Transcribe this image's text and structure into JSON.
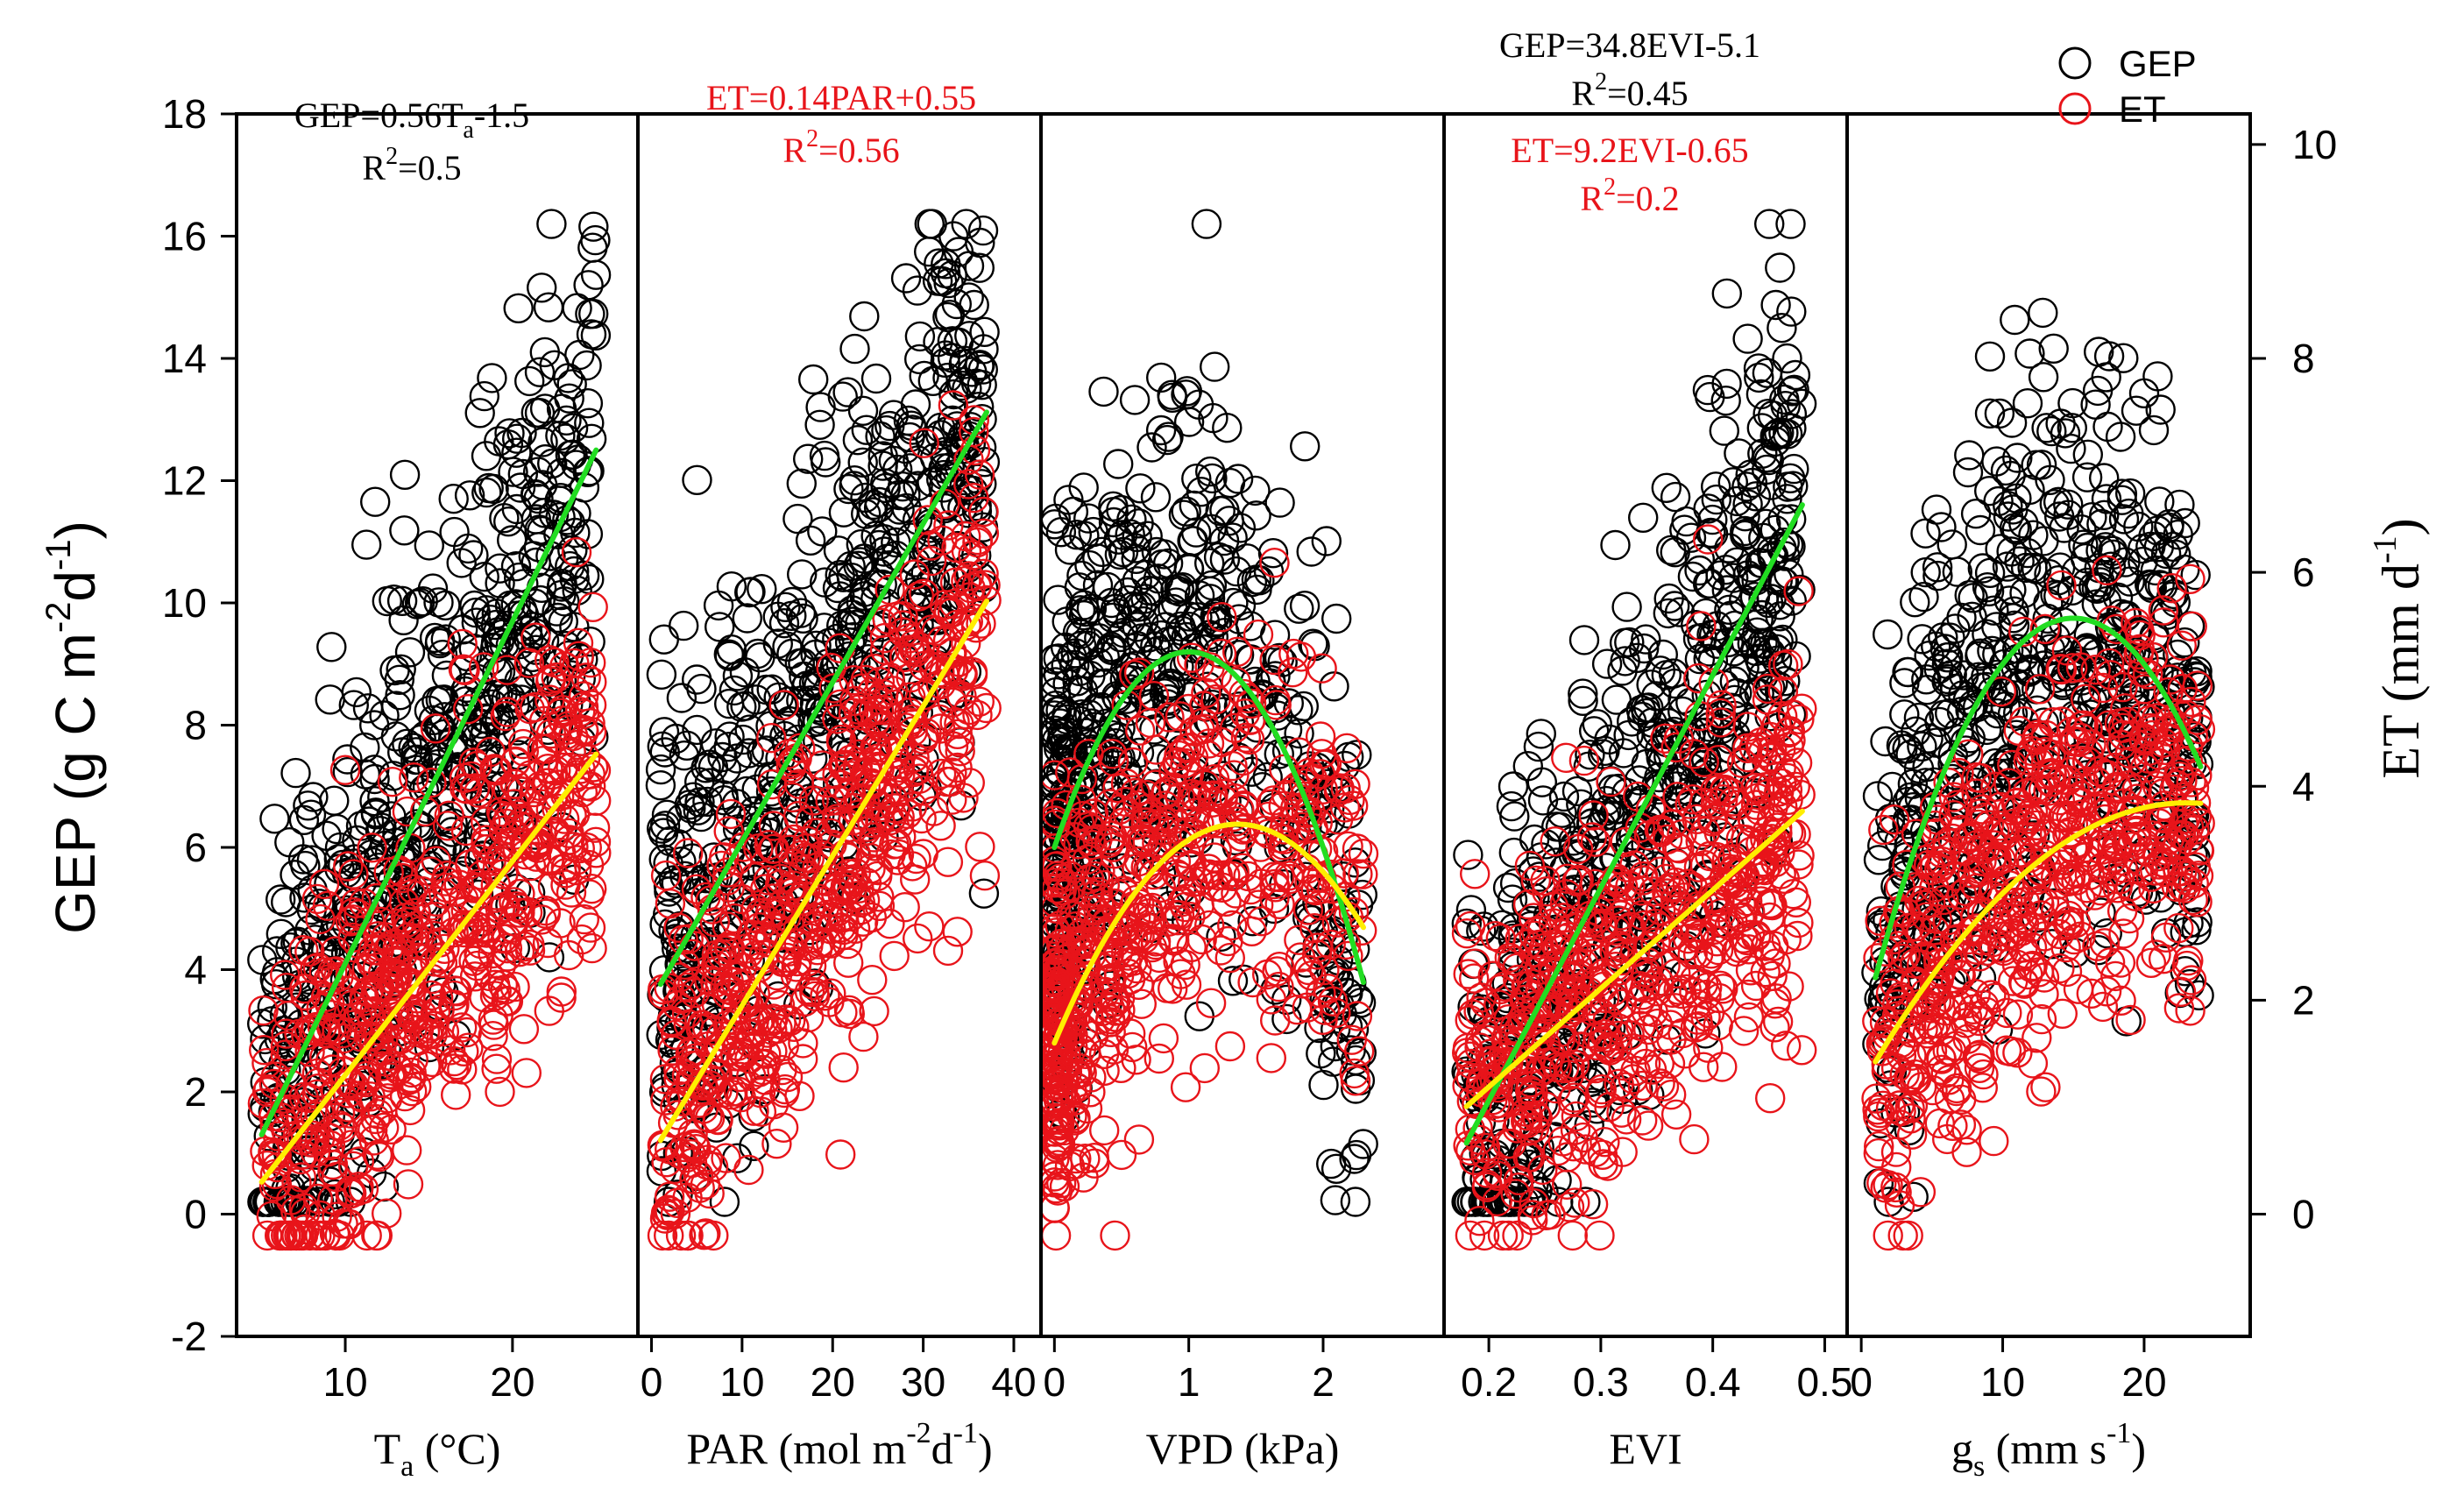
{
  "chart_data": {
    "type": "scatter",
    "left_axis": {
      "label_main": "GEP (g C m",
      "label_sup1": "-2",
      "label_mid": "d",
      "label_sup2": "-1",
      "label_end": ")",
      "ylim": [
        -2,
        18
      ],
      "ticks": [
        -2,
        0,
        2,
        4,
        6,
        8,
        10,
        12,
        14,
        16,
        18
      ]
    },
    "right_axis": {
      "label_main": "ET (mm d",
      "label_sup": "-1",
      "label_end": ")",
      "ylim": [
        -1.143,
        10.286
      ],
      "ticks": [
        0,
        2,
        4,
        6,
        8,
        10
      ]
    },
    "legend": {
      "position": "top-right",
      "entries": [
        {
          "name": "GEP",
          "color": "#000000"
        },
        {
          "name": "ET",
          "color": "#e8141a"
        }
      ]
    },
    "colors": {
      "gep": "#000000",
      "et": "#e8141a",
      "gep_fit": "#22dd22",
      "et_fit": "#ffee00"
    },
    "panels": [
      {
        "id": "ta",
        "xlabel_main": "T",
        "xlabel_sub": "a",
        "xlabel_end": " (°C)",
        "xlim": [
          3.5,
          27.5
        ],
        "ticks": [
          10,
          20
        ],
        "x_data_range": [
          5,
          25
        ],
        "gep_fit": {
          "type": "linear",
          "slope": 0.56,
          "intercept": -1.5,
          "x": [
            5,
            25
          ]
        },
        "et_fit": {
          "type": "linear",
          "slope": 0.2,
          "intercept": -0.7,
          "x": [
            5,
            25
          ]
        },
        "equations": [
          {
            "color": "#000000",
            "main": "GEP=0.56T",
            "sub": "a",
            "rest": "-1.5"
          },
          {
            "color": "#000000",
            "r2_label": "R",
            "r2_sup": "2",
            "r2_value": "=0.5"
          }
        ]
      },
      {
        "id": "par",
        "xlabel_main": "PAR (mol m",
        "xlabel_sup1": "-2",
        "xlabel_mid": "d",
        "xlabel_sup2": "-1",
        "xlabel_end": ")",
        "xlim": [
          -1.5,
          43
        ],
        "ticks": [
          0,
          10,
          20,
          30,
          40
        ],
        "x_data_range": [
          1,
          37
        ],
        "gep_fit": {
          "type": "linear",
          "slope": 0.26,
          "intercept": 3.5,
          "x": [
            1,
            37
          ]
        },
        "et_fit": {
          "type": "linear",
          "slope": 0.14,
          "intercept": 0.55,
          "x": [
            1,
            37
          ]
        },
        "equations": [
          {
            "color": "#e8141a",
            "main": "ET=0.14PAR+0.55"
          },
          {
            "color": "#e8141a",
            "r2_label": "R",
            "r2_sup": "2",
            "r2_value": "=0.56"
          }
        ]
      },
      {
        "id": "vpd",
        "xlabel_main": "VPD (kPa)",
        "xlim": [
          -0.1,
          2.9
        ],
        "ticks": [
          0,
          1,
          2
        ],
        "x_data_range": [
          0,
          2.3
        ],
        "gep_fit": {
          "type": "poly2",
          "a": -3.2,
          "b": 6.4,
          "c": 6.0,
          "x": [
            0,
            2.3
          ]
        },
        "et_fit": {
          "type": "poly2",
          "a": -1.1,
          "b": 3.0,
          "c": 1.6,
          "x": [
            0,
            2.3
          ]
        },
        "equations": []
      },
      {
        "id": "evi",
        "xlabel_main": "EVI",
        "xlim": [
          0.16,
          0.52
        ],
        "ticks": [
          0.2,
          0.3,
          0.4,
          0.5
        ],
        "x_data_range": [
          0.18,
          0.48
        ],
        "gep_fit": {
          "type": "linear",
          "slope": 34.8,
          "intercept": -5.1,
          "x": [
            0.18,
            0.48
          ]
        },
        "et_fit": {
          "type": "linear",
          "slope": 9.2,
          "intercept": -0.65,
          "x": [
            0.18,
            0.48
          ]
        },
        "equations": [
          {
            "color": "#000000",
            "main": "GEP=34.8EVI-5.1"
          },
          {
            "color": "#000000",
            "r2_label": "R",
            "r2_sup": "2",
            "r2_value": "=0.45"
          },
          {
            "color": "#e8141a",
            "main": "ET=9.2EVI-0.65"
          },
          {
            "color": "#e8141a",
            "r2_label": "R",
            "r2_sup": "2",
            "r2_value": "=0.2"
          }
        ]
      },
      {
        "id": "gs",
        "xlabel_main": "g",
        "xlabel_sub": "s",
        "xlabel_end": " (mm s",
        "xlabel_sup": "-1",
        "xlabel_end2": ")",
        "xlim": [
          -1,
          27.5
        ],
        "ticks": [
          0,
          10,
          20
        ],
        "x_data_range": [
          1,
          24
        ],
        "gep_fit": {
          "type": "poly2",
          "a": -0.03,
          "b": 0.9,
          "c": 3.0,
          "x": [
            1,
            24
          ]
        },
        "et_fit": {
          "type": "poly2",
          "a": -0.005,
          "b": 0.23,
          "c": 1.2,
          "x": [
            1,
            24
          ]
        },
        "equations": []
      }
    ]
  }
}
